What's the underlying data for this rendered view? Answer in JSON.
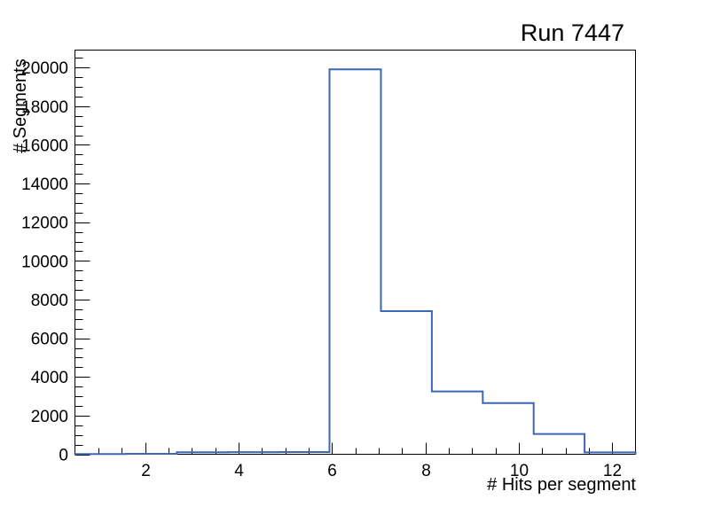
{
  "window": {
    "background_color": "#ffffff"
  },
  "chart_data": {
    "type": "bar",
    "subtype": "step-histogram",
    "title": "Run 7447",
    "xlabel": "# Hits per segment",
    "ylabel": "# Segments",
    "xlim": [
      0.5,
      12.5
    ],
    "ylim": [
      0,
      20900
    ],
    "x_major_ticks": [
      2,
      4,
      6,
      8,
      10,
      12
    ],
    "x_minor_tick_step": 0.5,
    "y_major_ticks": [
      0,
      2000,
      4000,
      6000,
      8000,
      10000,
      12000,
      14000,
      16000,
      18000,
      20000
    ],
    "y_minor_tick_step": 500,
    "bin_edges": [
      0.5,
      1.59,
      2.68,
      3.77,
      4.86,
      5.95,
      7.05,
      8.14,
      9.23,
      10.32,
      11.41,
      12.5
    ],
    "counts": [
      16,
      25,
      105,
      110,
      115,
      19900,
      7400,
      3250,
      2650,
      1050,
      95
    ],
    "line_color": "#3a67b8",
    "axis_color": "#000000",
    "text_color": "#000000",
    "grid": false,
    "legend": false
  }
}
